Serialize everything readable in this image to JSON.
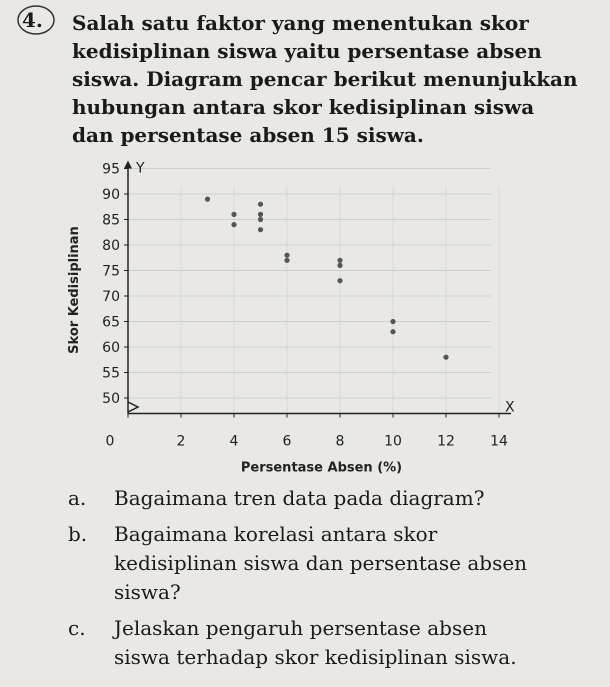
{
  "problem": {
    "number": "4.",
    "lines": [
      "Salah satu faktor yang menentukan skor",
      "kedisiplinan siswa yaitu persentase absen",
      "siswa. Diagram pencar berikut menunjukkan",
      "hubungan antara skor kedisiplinan siswa",
      "dan persentase absen 15 siswa."
    ]
  },
  "chart_data": {
    "type": "scatter",
    "x_axis_label": "Persentase Absen (%)",
    "y_axis_label": "Skor Kedisiplinan",
    "x_axis_name": "X",
    "y_axis_name": "Y",
    "x": [
      3,
      4,
      4,
      5,
      5,
      5,
      5,
      6,
      6,
      8,
      8,
      8,
      10,
      10,
      12
    ],
    "values": [
      89,
      86,
      84,
      88,
      86,
      85,
      83,
      78,
      77,
      77,
      76,
      73,
      65,
      63,
      58
    ],
    "color": "#555555",
    "xlim": [
      0,
      14
    ],
    "ylim": [
      45,
      95
    ],
    "xticks": [
      0,
      2,
      4,
      6,
      8,
      10,
      12,
      14
    ],
    "yticks": [
      50,
      55,
      60,
      65,
      70,
      75,
      80,
      85,
      90,
      95
    ],
    "grid": true
  },
  "questions": [
    {
      "label": "a.",
      "lines": [
        "Bagaimana tren data pada diagram?"
      ]
    },
    {
      "label": "b.",
      "lines": [
        "Bagaimana korelasi antara skor",
        "kedisiplinan siswa dan persentase absen",
        "siswa?"
      ]
    },
    {
      "label": "c.",
      "lines": [
        "Jelaskan pengaruh persentase absen",
        "siswa terhadap skor kedisiplinan siswa."
      ]
    }
  ]
}
